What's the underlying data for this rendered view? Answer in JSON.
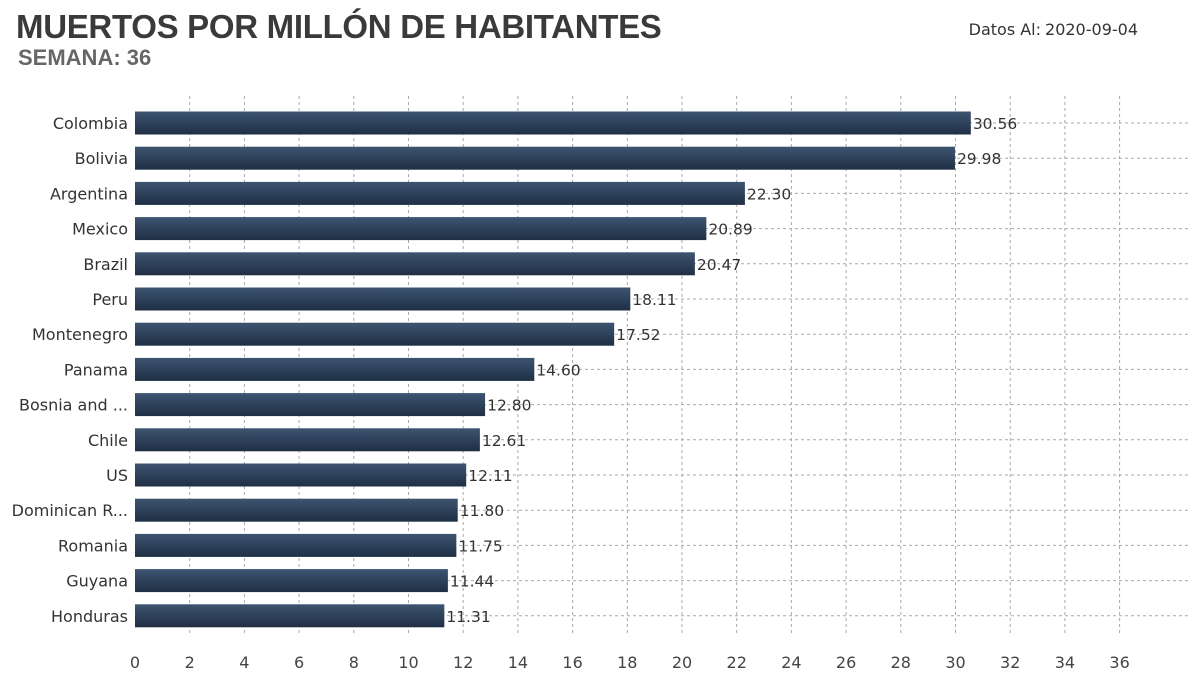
{
  "header": {
    "title": "MUERTOS POR MILLÓN DE HABITANTES",
    "subtitle": "SEMANA: 36",
    "date_label": "Datos Al:",
    "date_value": "2020-09-04"
  },
  "colors": {
    "bar_top": "#3d5470",
    "bar_bottom": "#1f2f45",
    "grid": "#a9a9a9",
    "axis_text": "#444444",
    "label_text": "#333333"
  },
  "chart_data": {
    "type": "bar",
    "orientation": "horizontal",
    "title": "MUERTOS POR MILLÓN DE HABITANTES",
    "subtitle": "SEMANA: 36",
    "xlabel": "",
    "ylabel": "",
    "xlim": [
      0,
      38
    ],
    "xticks": [
      0,
      2,
      4,
      6,
      8,
      10,
      12,
      14,
      16,
      18,
      20,
      22,
      24,
      26,
      28,
      30,
      32,
      34,
      36
    ],
    "grid": true,
    "categories": [
      "Colombia",
      "Bolivia",
      "Argentina",
      "Mexico",
      "Brazil",
      "Peru",
      "Montenegro",
      "Panama",
      "Bosnia and ...",
      "Chile",
      "US",
      "Dominican R...",
      "Romania",
      "Guyana",
      "Honduras"
    ],
    "values": [
      30.56,
      29.98,
      22.3,
      20.89,
      20.47,
      18.11,
      17.52,
      14.6,
      12.8,
      12.61,
      12.11,
      11.8,
      11.75,
      11.44,
      11.31
    ],
    "value_labels": [
      "30.56",
      "29.98",
      "22.30",
      "20.89",
      "20.47",
      "18.11",
      "17.52",
      "14.60",
      "12.80",
      "12.61",
      "12.11",
      "11.80",
      "11.75",
      "11.44",
      "11.31"
    ]
  }
}
